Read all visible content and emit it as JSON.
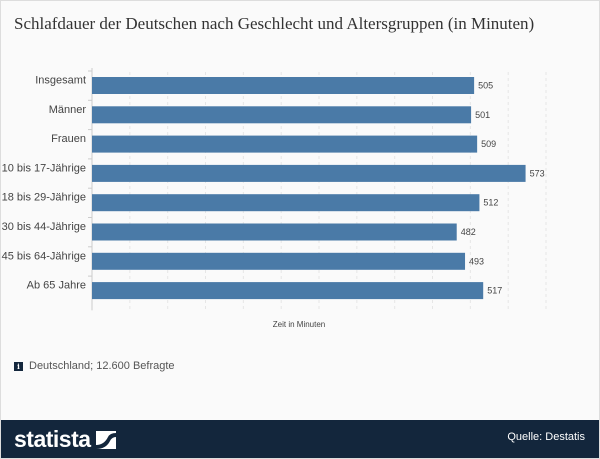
{
  "chart_data": {
    "type": "bar",
    "orientation": "horizontal",
    "title": "Schlafdauer der Deutschen nach Geschlecht und Altersgruppen (in Minuten)",
    "xlabel": "Zeit in Minuten",
    "ylabel": "",
    "categories": [
      "Insgesamt",
      "Männer",
      "Frauen",
      "10 bis 17-Jährige",
      "18 bis 29-Jährige",
      "30 bis 44-Jährige",
      "45 bis 64-Jährige",
      "Ab 65 Jahre"
    ],
    "values": [
      505,
      501,
      509,
      573,
      512,
      482,
      493,
      517
    ],
    "xlim": [
      0,
      600
    ],
    "grid": true,
    "bar_color": "#4a7aa7",
    "data_labels": true
  },
  "note": "Deutschland; 12.600 Befragte",
  "info_icon": "info-icon",
  "footer": {
    "logo": "statista",
    "source": "Quelle: Destatis",
    "background": "#13263c"
  }
}
